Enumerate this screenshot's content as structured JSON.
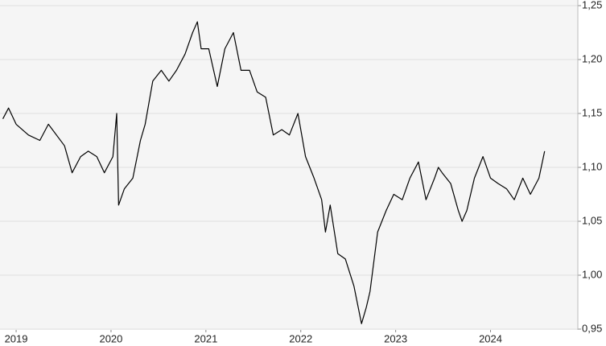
{
  "chart_data": {
    "type": "line",
    "x": [
      2018.86,
      2018.92,
      2019.0,
      2019.13,
      2019.25,
      2019.34,
      2019.51,
      2019.59,
      2019.68,
      2019.76,
      2019.85,
      2019.93,
      2020.02,
      2020.06,
      2020.08,
      2020.14,
      2020.23,
      2020.31,
      2020.36,
      2020.44,
      2020.53,
      2020.61,
      2020.69,
      2020.78,
      2020.86,
      2020.91,
      2020.95,
      2021.03,
      2021.12,
      2021.2,
      2021.29,
      2021.37,
      2021.46,
      2021.54,
      2021.63,
      2021.71,
      2021.8,
      2021.88,
      2021.97,
      2022.05,
      2022.14,
      2022.22,
      2022.26,
      2022.31,
      2022.39,
      2022.47,
      2022.56,
      2022.64,
      2022.69,
      2022.73,
      2022.81,
      2022.9,
      2022.98,
      2023.07,
      2023.15,
      2023.24,
      2023.32,
      2023.41,
      2023.45,
      2023.49,
      2023.58,
      2023.66,
      2023.7,
      2023.75,
      2023.83,
      2023.92,
      2024.0,
      2024.08,
      2024.17,
      2024.25,
      2024.34,
      2024.42,
      2024.51,
      2024.57
    ],
    "values": [
      1.145,
      1.155,
      1.14,
      1.13,
      1.125,
      1.14,
      1.12,
      1.095,
      1.11,
      1.115,
      1.11,
      1.095,
      1.11,
      1.15,
      1.065,
      1.08,
      1.09,
      1.125,
      1.14,
      1.18,
      1.19,
      1.18,
      1.19,
      1.205,
      1.225,
      1.235,
      1.21,
      1.21,
      1.175,
      1.21,
      1.225,
      1.19,
      1.19,
      1.17,
      1.165,
      1.13,
      1.135,
      1.13,
      1.15,
      1.11,
      1.09,
      1.07,
      1.04,
      1.065,
      1.02,
      1.015,
      0.99,
      0.955,
      0.97,
      0.985,
      1.04,
      1.06,
      1.075,
      1.07,
      1.09,
      1.105,
      1.07,
      1.09,
      1.1,
      1.095,
      1.085,
      1.06,
      1.05,
      1.06,
      1.09,
      1.11,
      1.09,
      1.085,
      1.08,
      1.07,
      1.09,
      1.075,
      1.09,
      1.115
    ],
    "color": "#000000",
    "xlim": [
      2018.83,
      2024.92
    ],
    "xticks": [
      2019,
      2020,
      2021,
      2022,
      2023,
      2024
    ],
    "ylim": [
      0.95,
      1.25
    ],
    "yticks": [
      {
        "value": 0.95,
        "label": "0,95"
      },
      {
        "value": 1.0,
        "label": "1,00"
      },
      {
        "value": 1.05,
        "label": "1,05"
      },
      {
        "value": 1.1,
        "label": "1,10"
      },
      {
        "value": 1.15,
        "label": "1,15"
      },
      {
        "value": 1.2,
        "label": "1,20"
      },
      {
        "value": 1.25,
        "label": "1,25"
      }
    ],
    "grid": true
  }
}
